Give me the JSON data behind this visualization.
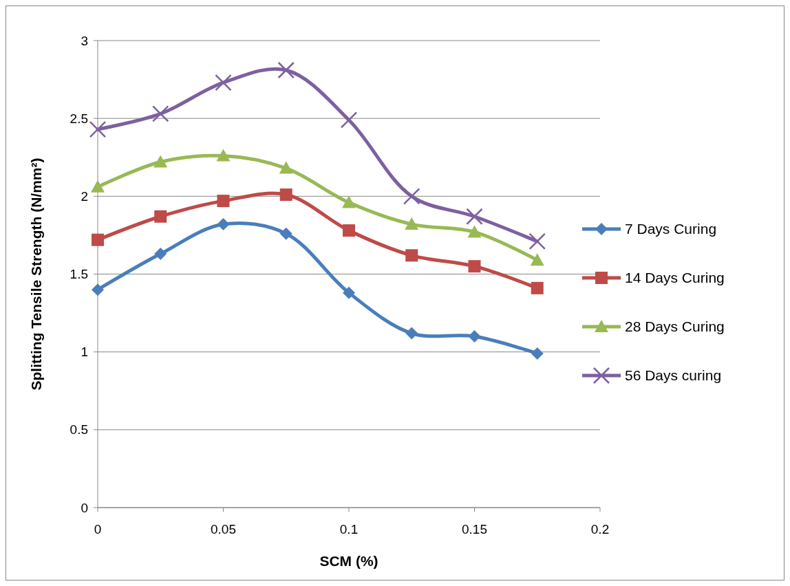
{
  "chart_data": {
    "type": "line",
    "xlabel": "SCM (%)",
    "ylabel": "Splitting Tensile Strength (N/mm²)",
    "x": [
      0,
      0.025,
      0.05,
      0.075,
      0.1,
      0.125,
      0.15,
      0.175
    ],
    "xlim": [
      0,
      0.2
    ],
    "xticks": [
      0,
      0.05,
      0.1,
      0.15,
      0.2
    ],
    "ylim": [
      0,
      3
    ],
    "yticks": [
      0,
      0.5,
      1,
      1.5,
      2,
      2.5,
      3
    ],
    "grid": "y",
    "legend": "right",
    "series": [
      {
        "name": "7 Days Curing",
        "color": "#4a7ebb",
        "marker": "diamond",
        "values": [
          1.4,
          1.63,
          1.82,
          1.76,
          1.38,
          1.12,
          1.1,
          0.99
        ]
      },
      {
        "name": "14 Days Curing",
        "color": "#be4b48",
        "marker": "square",
        "values": [
          1.72,
          1.87,
          1.97,
          2.01,
          1.78,
          1.62,
          1.55,
          1.41
        ]
      },
      {
        "name": "28 Days Curing",
        "color": "#98b954",
        "marker": "triangle",
        "values": [
          2.06,
          2.22,
          2.26,
          2.18,
          1.96,
          1.82,
          1.77,
          1.59
        ]
      },
      {
        "name": "56 Days curing",
        "color": "#7d60a0",
        "marker": "cross",
        "values": [
          2.43,
          2.53,
          2.73,
          2.81,
          2.49,
          2,
          1.87,
          1.71
        ]
      }
    ]
  }
}
